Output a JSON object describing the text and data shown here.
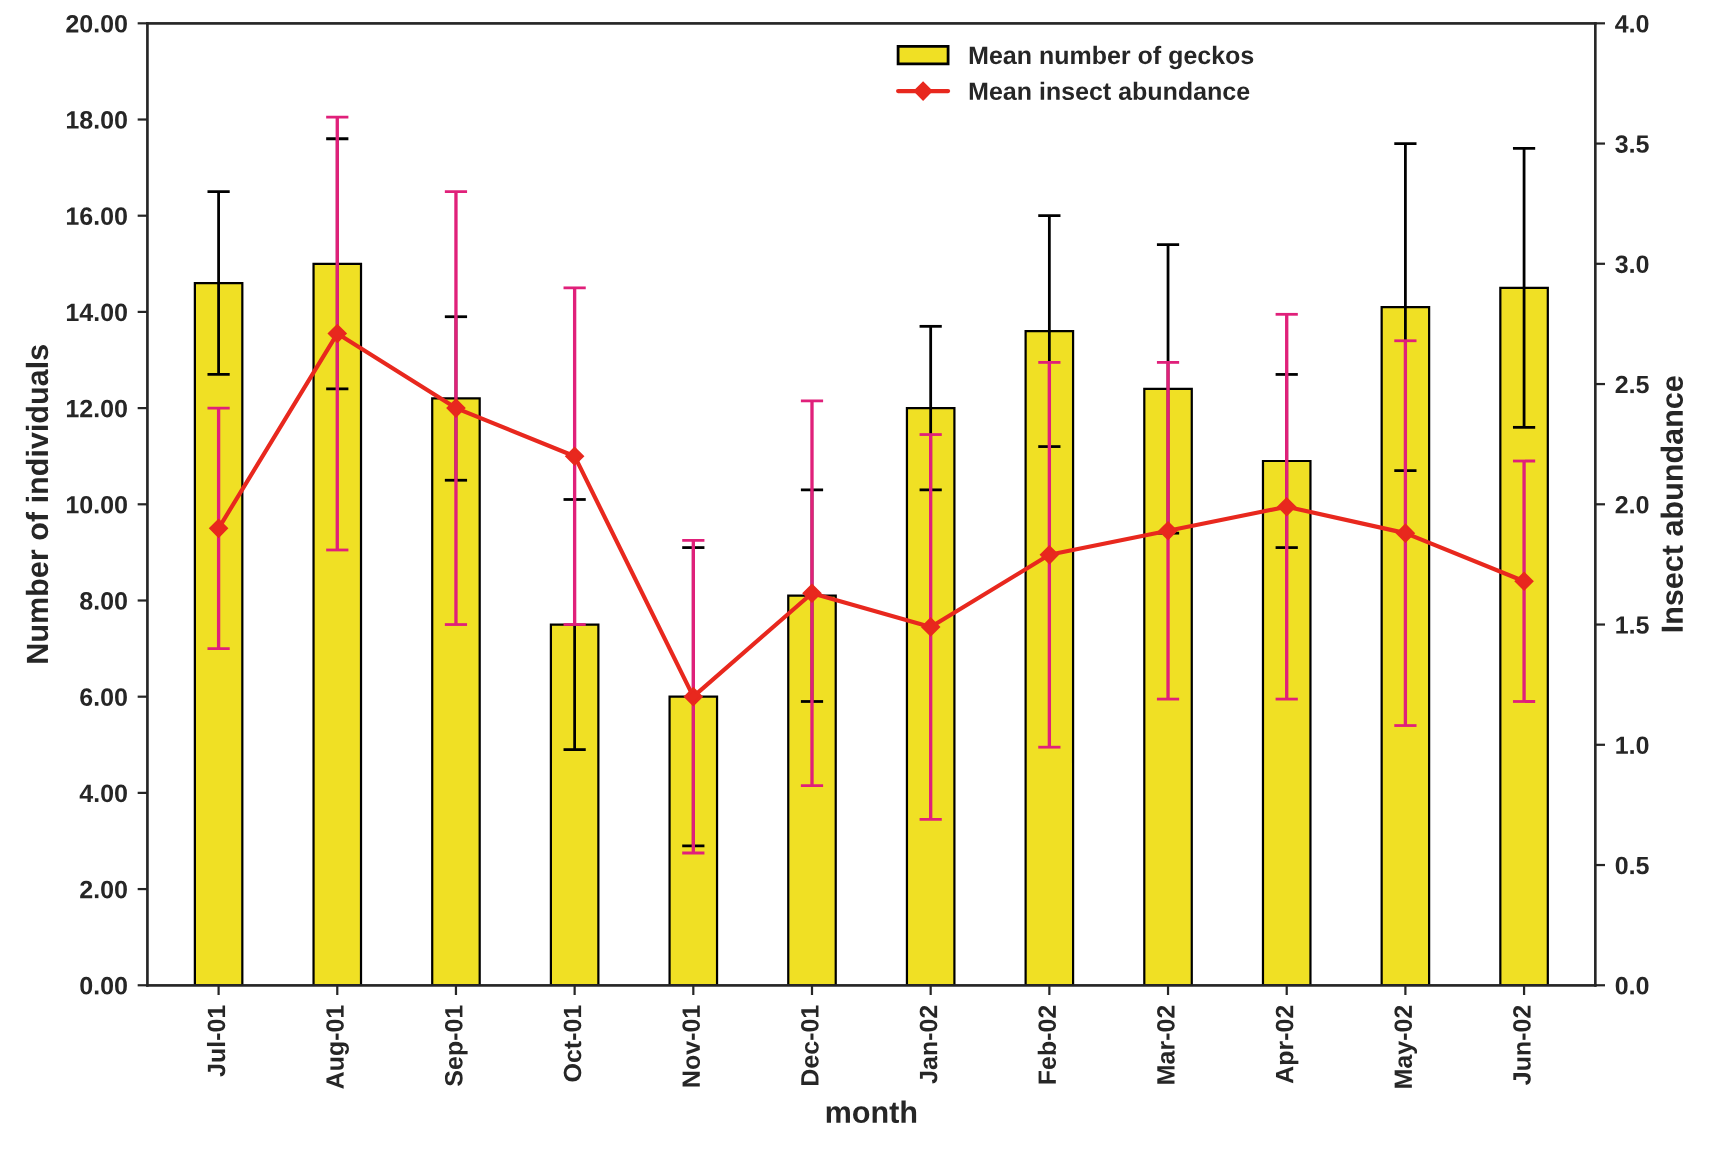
{
  "chart_data": {
    "type": "bar",
    "xlabel": "month",
    "ylabel": "Number of individuals",
    "y2label": "Insect abundance",
    "categories": [
      "Jul-01",
      "Aug-01",
      "Sep-01",
      "Oct-01",
      "Nov-01",
      "Dec-01",
      "Jan-02",
      "Feb-02",
      "Mar-02",
      "Apr-02",
      "May-02",
      "Jun-02"
    ],
    "series": [
      {
        "name": "Mean number of geckos",
        "color": "#f0e024",
        "values": [
          14.6,
          15.0,
          12.2,
          7.5,
          6.0,
          8.1,
          12.0,
          13.6,
          12.4,
          10.9,
          14.1,
          14.5
        ],
        "errors": [
          1.9,
          2.6,
          1.7,
          2.6,
          3.1,
          2.2,
          1.7,
          2.4,
          3.0,
          1.8,
          3.4,
          2.9
        ]
      },
      {
        "name": "Mean insect abundance",
        "type": "line",
        "axis": "y2",
        "color": "#e8281e",
        "marker": "diamond",
        "values": [
          1.9,
          2.71,
          2.4,
          2.2,
          1.2,
          1.63,
          1.49,
          1.79,
          1.89,
          1.99,
          1.88,
          1.68
        ],
        "errors": [
          0.5,
          0.9,
          0.9,
          0.7,
          0.65,
          0.8,
          0.8,
          0.8,
          0.7,
          0.8,
          0.8,
          0.5
        ]
      }
    ],
    "ylim": [
      0,
      20
    ],
    "yticks": [
      {
        "value": 0,
        "label": "0.00"
      },
      {
        "value": 2,
        "label": "2.00"
      },
      {
        "value": 4,
        "label": "4.00"
      },
      {
        "value": 6,
        "label": "6.00"
      },
      {
        "value": 8,
        "label": "8.00"
      },
      {
        "value": 10,
        "label": "10.00"
      },
      {
        "value": 12,
        "label": "12.00"
      },
      {
        "value": 14,
        "label": "14.00"
      },
      {
        "value": 16,
        "label": "16.00"
      },
      {
        "value": 18,
        "label": "18.00"
      },
      {
        "value": 20,
        "label": "20.00"
      }
    ],
    "y2lim": [
      0,
      4
    ],
    "y2ticks": [
      {
        "value": 0,
        "label": "0.0"
      },
      {
        "value": 0.5,
        "label": "0.5"
      },
      {
        "value": 1,
        "label": "1.0"
      },
      {
        "value": 1.5,
        "label": "1.5"
      },
      {
        "value": 2,
        "label": "2.0"
      },
      {
        "value": 2.5,
        "label": "2.5"
      },
      {
        "value": 3,
        "label": "3.0"
      },
      {
        "value": 3.5,
        "label": "3.5"
      },
      {
        "value": 4,
        "label": "4.0"
      }
    ],
    "legend": "top right"
  }
}
